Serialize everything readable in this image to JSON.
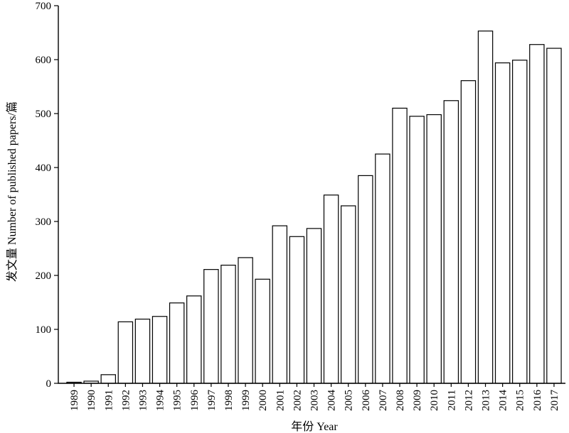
{
  "chart_data": {
    "type": "bar",
    "categories": [
      "1989",
      "1990",
      "1991",
      "1992",
      "1993",
      "1994",
      "1995",
      "1996",
      "1997",
      "1998",
      "1999",
      "2000",
      "2001",
      "2002",
      "2003",
      "2004",
      "2005",
      "2006",
      "2007",
      "2008",
      "2009",
      "2010",
      "2011",
      "2012",
      "2013",
      "2014",
      "2015",
      "2016",
      "2017"
    ],
    "values": [
      2,
      4,
      16,
      114,
      119,
      124,
      149,
      162,
      211,
      219,
      233,
      193,
      292,
      272,
      287,
      349,
      329,
      385,
      425,
      510,
      495,
      498,
      524,
      561,
      653,
      594,
      599,
      628,
      621
    ],
    "title": "",
    "xlabel": "年份 Year",
    "ylabel": "发文量 Number of published papers/篇",
    "ylim": [
      0,
      700
    ],
    "yticks": [
      0,
      100,
      200,
      300,
      400,
      500,
      600,
      700
    ],
    "grid": false,
    "bar_fill": "#ffffff",
    "bar_edge": "#000000"
  }
}
